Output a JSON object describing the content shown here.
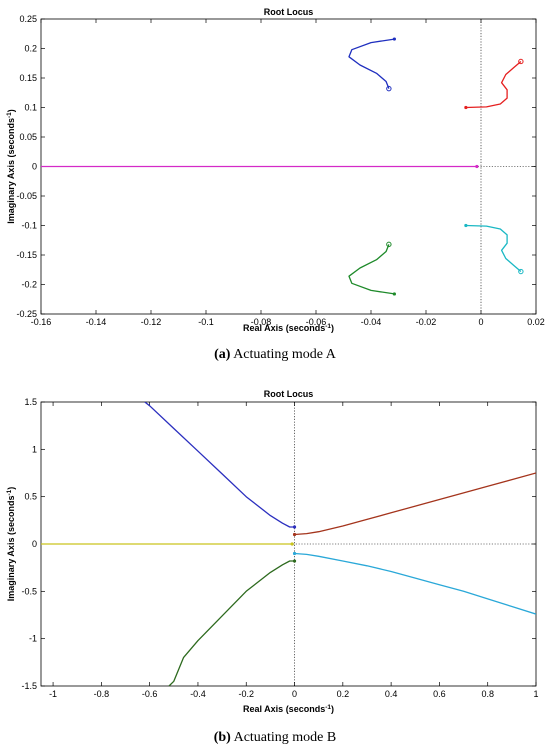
{
  "chart_data": [
    {
      "type": "line",
      "title": "Root Locus",
      "xlabel": "Real Axis (seconds",
      "ylabel": "Imaginary Axis (seconds",
      "label_exponent": "-1",
      "label_close": ")",
      "xlim": [
        -0.16,
        0.02
      ],
      "ylim": [
        -0.25,
        0.25
      ],
      "xticks": [
        -0.16,
        -0.14,
        -0.12,
        -0.1,
        -0.08,
        -0.06,
        -0.04,
        -0.02,
        0,
        0.02
      ],
      "xtick_labels": [
        "-0.16",
        "-0.14",
        "-0.12",
        "-0.1",
        "-0.08",
        "-0.06",
        "-0.04",
        "-0.02",
        "0",
        "0.02"
      ],
      "yticks": [
        0.25,
        0.2,
        0.15,
        0.1,
        0.05,
        0,
        -0.05,
        -0.1,
        -0.15,
        -0.2,
        -0.25
      ],
      "ytick_labels": [
        "0.25",
        "0.2",
        "0.15",
        "0.1",
        "0.05",
        "0",
        "-0.05",
        "-0.1",
        "-0.15",
        "-0.2",
        "-0.25"
      ],
      "caption_prefix": "(a)",
      "caption_text": " Actuating mode A",
      "series": [
        {
          "color": "#1f2fbf",
          "points": [
            [
              -0.0315,
              0.216
            ],
            [
              -0.04,
              0.21
            ],
            [
              -0.047,
              0.198
            ],
            [
              -0.048,
              0.186
            ],
            [
              -0.044,
              0.172
            ],
            [
              -0.038,
              0.158
            ],
            [
              -0.0345,
              0.144
            ],
            [
              -0.0335,
              0.132
            ]
          ],
          "start_marker": "dot",
          "end_marker": "circle"
        },
        {
          "color": "#e52020",
          "points": [
            [
              -0.0055,
              0.1
            ],
            [
              0.002,
              0.101
            ],
            [
              0.007,
              0.106
            ],
            [
              0.0095,
              0.116
            ],
            [
              0.0095,
              0.13
            ],
            [
              0.0075,
              0.142
            ],
            [
              0.009,
              0.156
            ],
            [
              0.012,
              0.168
            ],
            [
              0.0145,
              0.178
            ]
          ],
          "start_marker": "dot",
          "end_marker": "circle"
        },
        {
          "color": "#d42ac8",
          "points": [
            [
              -0.16,
              0.0
            ],
            [
              -0.0015,
              0.0
            ]
          ],
          "start_marker": "none",
          "end_marker": "dot"
        },
        {
          "color": "#1ab8c4",
          "points": [
            [
              -0.0055,
              -0.1
            ],
            [
              0.002,
              -0.101
            ],
            [
              0.007,
              -0.106
            ],
            [
              0.0095,
              -0.116
            ],
            [
              0.0095,
              -0.13
            ],
            [
              0.0075,
              -0.142
            ],
            [
              0.009,
              -0.156
            ],
            [
              0.012,
              -0.168
            ],
            [
              0.0145,
              -0.178
            ]
          ],
          "start_marker": "dot",
          "end_marker": "circle"
        },
        {
          "color": "#1e8a2a",
          "points": [
            [
              -0.0315,
              -0.216
            ],
            [
              -0.04,
              -0.21
            ],
            [
              -0.047,
              -0.198
            ],
            [
              -0.048,
              -0.186
            ],
            [
              -0.044,
              -0.172
            ],
            [
              -0.038,
              -0.158
            ],
            [
              -0.0345,
              -0.144
            ],
            [
              -0.0335,
              -0.132
            ]
          ],
          "start_marker": "dot",
          "end_marker": "circle"
        }
      ]
    },
    {
      "type": "line",
      "title": "Root Locus",
      "xlabel": "Real Axis (seconds",
      "ylabel": "Imaginary Axis (seconds",
      "label_exponent": "-1",
      "label_close": ")",
      "xlim": [
        -1.05,
        1.0
      ],
      "ylim": [
        -1.5,
        1.5
      ],
      "xticks": [
        -1,
        -0.8,
        -0.6,
        -0.4,
        -0.2,
        0,
        0.2,
        0.4,
        0.6,
        0.8,
        1
      ],
      "xtick_labels": [
        "-1",
        "-0.8",
        "-0.6",
        "-0.4",
        "-0.2",
        "0",
        "0.2",
        "0.4",
        "0.6",
        "0.8",
        "1"
      ],
      "yticks": [
        1.5,
        1,
        0.5,
        0,
        -0.5,
        -1,
        -1.5
      ],
      "ytick_labels": [
        "1.5",
        "1",
        "0.5",
        "0",
        "-0.5",
        "-1",
        "-1.5"
      ],
      "caption_prefix": "(b)",
      "caption_text": " Actuating mode B",
      "series": [
        {
          "color": "#2b2fbf",
          "points": [
            [
              0.0,
              0.18
            ],
            [
              -0.02,
              0.18
            ],
            [
              -0.05,
              0.22
            ],
            [
              -0.1,
              0.3
            ],
            [
              -0.2,
              0.5
            ],
            [
              -0.3,
              0.74
            ],
            [
              -0.4,
              0.98
            ],
            [
              -0.5,
              1.22
            ],
            [
              -0.6,
              1.46
            ],
            [
              -0.62,
              1.5
            ]
          ],
          "start_marker": "dot",
          "end_marker": "none"
        },
        {
          "color": "#a4341c",
          "points": [
            [
              0.0,
              0.1
            ],
            [
              0.05,
              0.11
            ],
            [
              0.1,
              0.13
            ],
            [
              0.2,
              0.19
            ],
            [
              0.3,
              0.26
            ],
            [
              0.4,
              0.33
            ],
            [
              0.5,
              0.4
            ],
            [
              0.6,
              0.47
            ],
            [
              0.7,
              0.54
            ],
            [
              0.8,
              0.61
            ],
            [
              0.9,
              0.68
            ],
            [
              1.0,
              0.75
            ]
          ],
          "start_marker": "dot",
          "end_marker": "none"
        },
        {
          "color": "#c9c41e",
          "points": [
            [
              -1.05,
              0.0
            ],
            [
              -0.01,
              0.0
            ]
          ],
          "start_marker": "none",
          "end_marker": "dot"
        },
        {
          "color": "#2aa8d8",
          "points": [
            [
              0.0,
              -0.1
            ],
            [
              0.05,
              -0.11
            ],
            [
              0.1,
              -0.13
            ],
            [
              0.2,
              -0.18
            ],
            [
              0.3,
              -0.23
            ],
            [
              0.4,
              -0.29
            ],
            [
              0.5,
              -0.36
            ],
            [
              0.6,
              -0.43
            ],
            [
              0.7,
              -0.5
            ],
            [
              0.8,
              -0.58
            ],
            [
              0.9,
              -0.66
            ],
            [
              1.0,
              -0.74
            ]
          ],
          "start_marker": "dot",
          "end_marker": "none"
        },
        {
          "color": "#2d6a1e",
          "points": [
            [
              0.0,
              -0.18
            ],
            [
              -0.02,
              -0.18
            ],
            [
              -0.05,
              -0.22
            ],
            [
              -0.1,
              -0.3
            ],
            [
              -0.2,
              -0.5
            ],
            [
              -0.3,
              -0.76
            ],
            [
              -0.4,
              -1.02
            ],
            [
              -0.46,
              -1.2
            ],
            [
              -0.5,
              -1.45
            ],
            [
              -0.52,
              -1.5
            ]
          ],
          "start_marker": "dot",
          "end_marker": "none"
        }
      ]
    }
  ]
}
